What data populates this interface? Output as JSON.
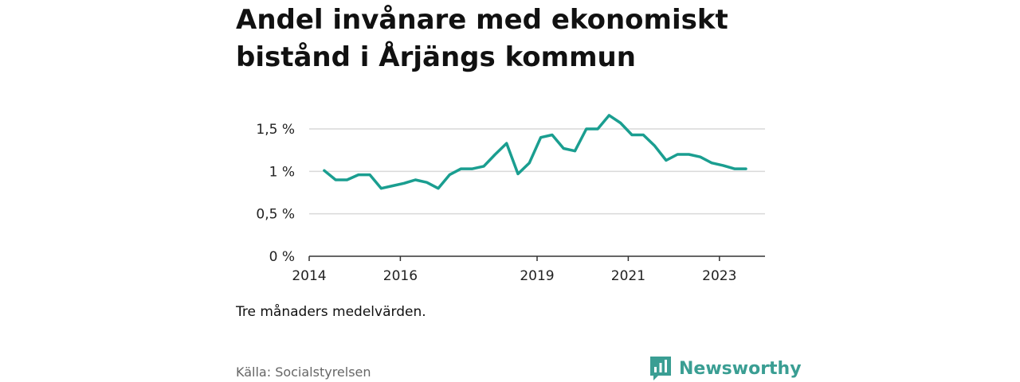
{
  "header": {
    "title": "Andel invånare med ekonomiskt bistånd i Årjängs kommun"
  },
  "footer": {
    "note": "Tre månaders medelvärden.",
    "source": "Källa: Socialstyrelsen",
    "brand": "Newsworthy",
    "brand_color": "#3a9e93"
  },
  "chart_data": {
    "type": "line",
    "title": "Andel invånare med ekonomiskt bistånd i Årjängs kommun",
    "xlabel": "",
    "ylabel": "",
    "line_color": "#1a9e90",
    "xlim": [
      2014.0,
      2024.0
    ],
    "ylim": [
      0,
      1.8
    ],
    "y_ticks": [
      {
        "value": 0,
        "label": "0 %"
      },
      {
        "value": 0.5,
        "label": "0,5 %"
      },
      {
        "value": 1.0,
        "label": "1 %"
      },
      {
        "value": 1.5,
        "label": "1,5 %"
      }
    ],
    "x_ticks": [
      {
        "value": 2014,
        "label": "2014"
      },
      {
        "value": 2016,
        "label": "2016"
      },
      {
        "value": 2019,
        "label": "2019"
      },
      {
        "value": 2021,
        "label": "2021"
      },
      {
        "value": 2023,
        "label": "2023"
      }
    ],
    "grid": true,
    "series": [
      {
        "values": [
          [
            2014.33,
            1.01
          ],
          [
            2014.58,
            0.9
          ],
          [
            2014.83,
            0.9
          ],
          [
            2015.08,
            0.96
          ],
          [
            2015.33,
            0.96
          ],
          [
            2015.58,
            0.8
          ],
          [
            2015.83,
            0.83
          ],
          [
            2016.08,
            0.86
          ],
          [
            2016.33,
            0.9
          ],
          [
            2016.58,
            0.87
          ],
          [
            2016.83,
            0.8
          ],
          [
            2017.08,
            0.96
          ],
          [
            2017.33,
            1.03
          ],
          [
            2017.58,
            1.03
          ],
          [
            2017.83,
            1.06
          ],
          [
            2018.08,
            1.2
          ],
          [
            2018.33,
            1.33
          ],
          [
            2018.58,
            0.97
          ],
          [
            2018.83,
            1.1
          ],
          [
            2019.08,
            1.4
          ],
          [
            2019.33,
            1.43
          ],
          [
            2019.58,
            1.27
          ],
          [
            2019.83,
            1.24
          ],
          [
            2020.08,
            1.5
          ],
          [
            2020.33,
            1.5
          ],
          [
            2020.58,
            1.66
          ],
          [
            2020.83,
            1.57
          ],
          [
            2021.08,
            1.43
          ],
          [
            2021.33,
            1.43
          ],
          [
            2021.58,
            1.3
          ],
          [
            2021.83,
            1.13
          ],
          [
            2022.08,
            1.2
          ],
          [
            2022.33,
            1.2
          ],
          [
            2022.58,
            1.17
          ],
          [
            2022.83,
            1.1
          ],
          [
            2023.08,
            1.07
          ],
          [
            2023.33,
            1.03
          ],
          [
            2023.58,
            1.03
          ]
        ]
      }
    ]
  }
}
